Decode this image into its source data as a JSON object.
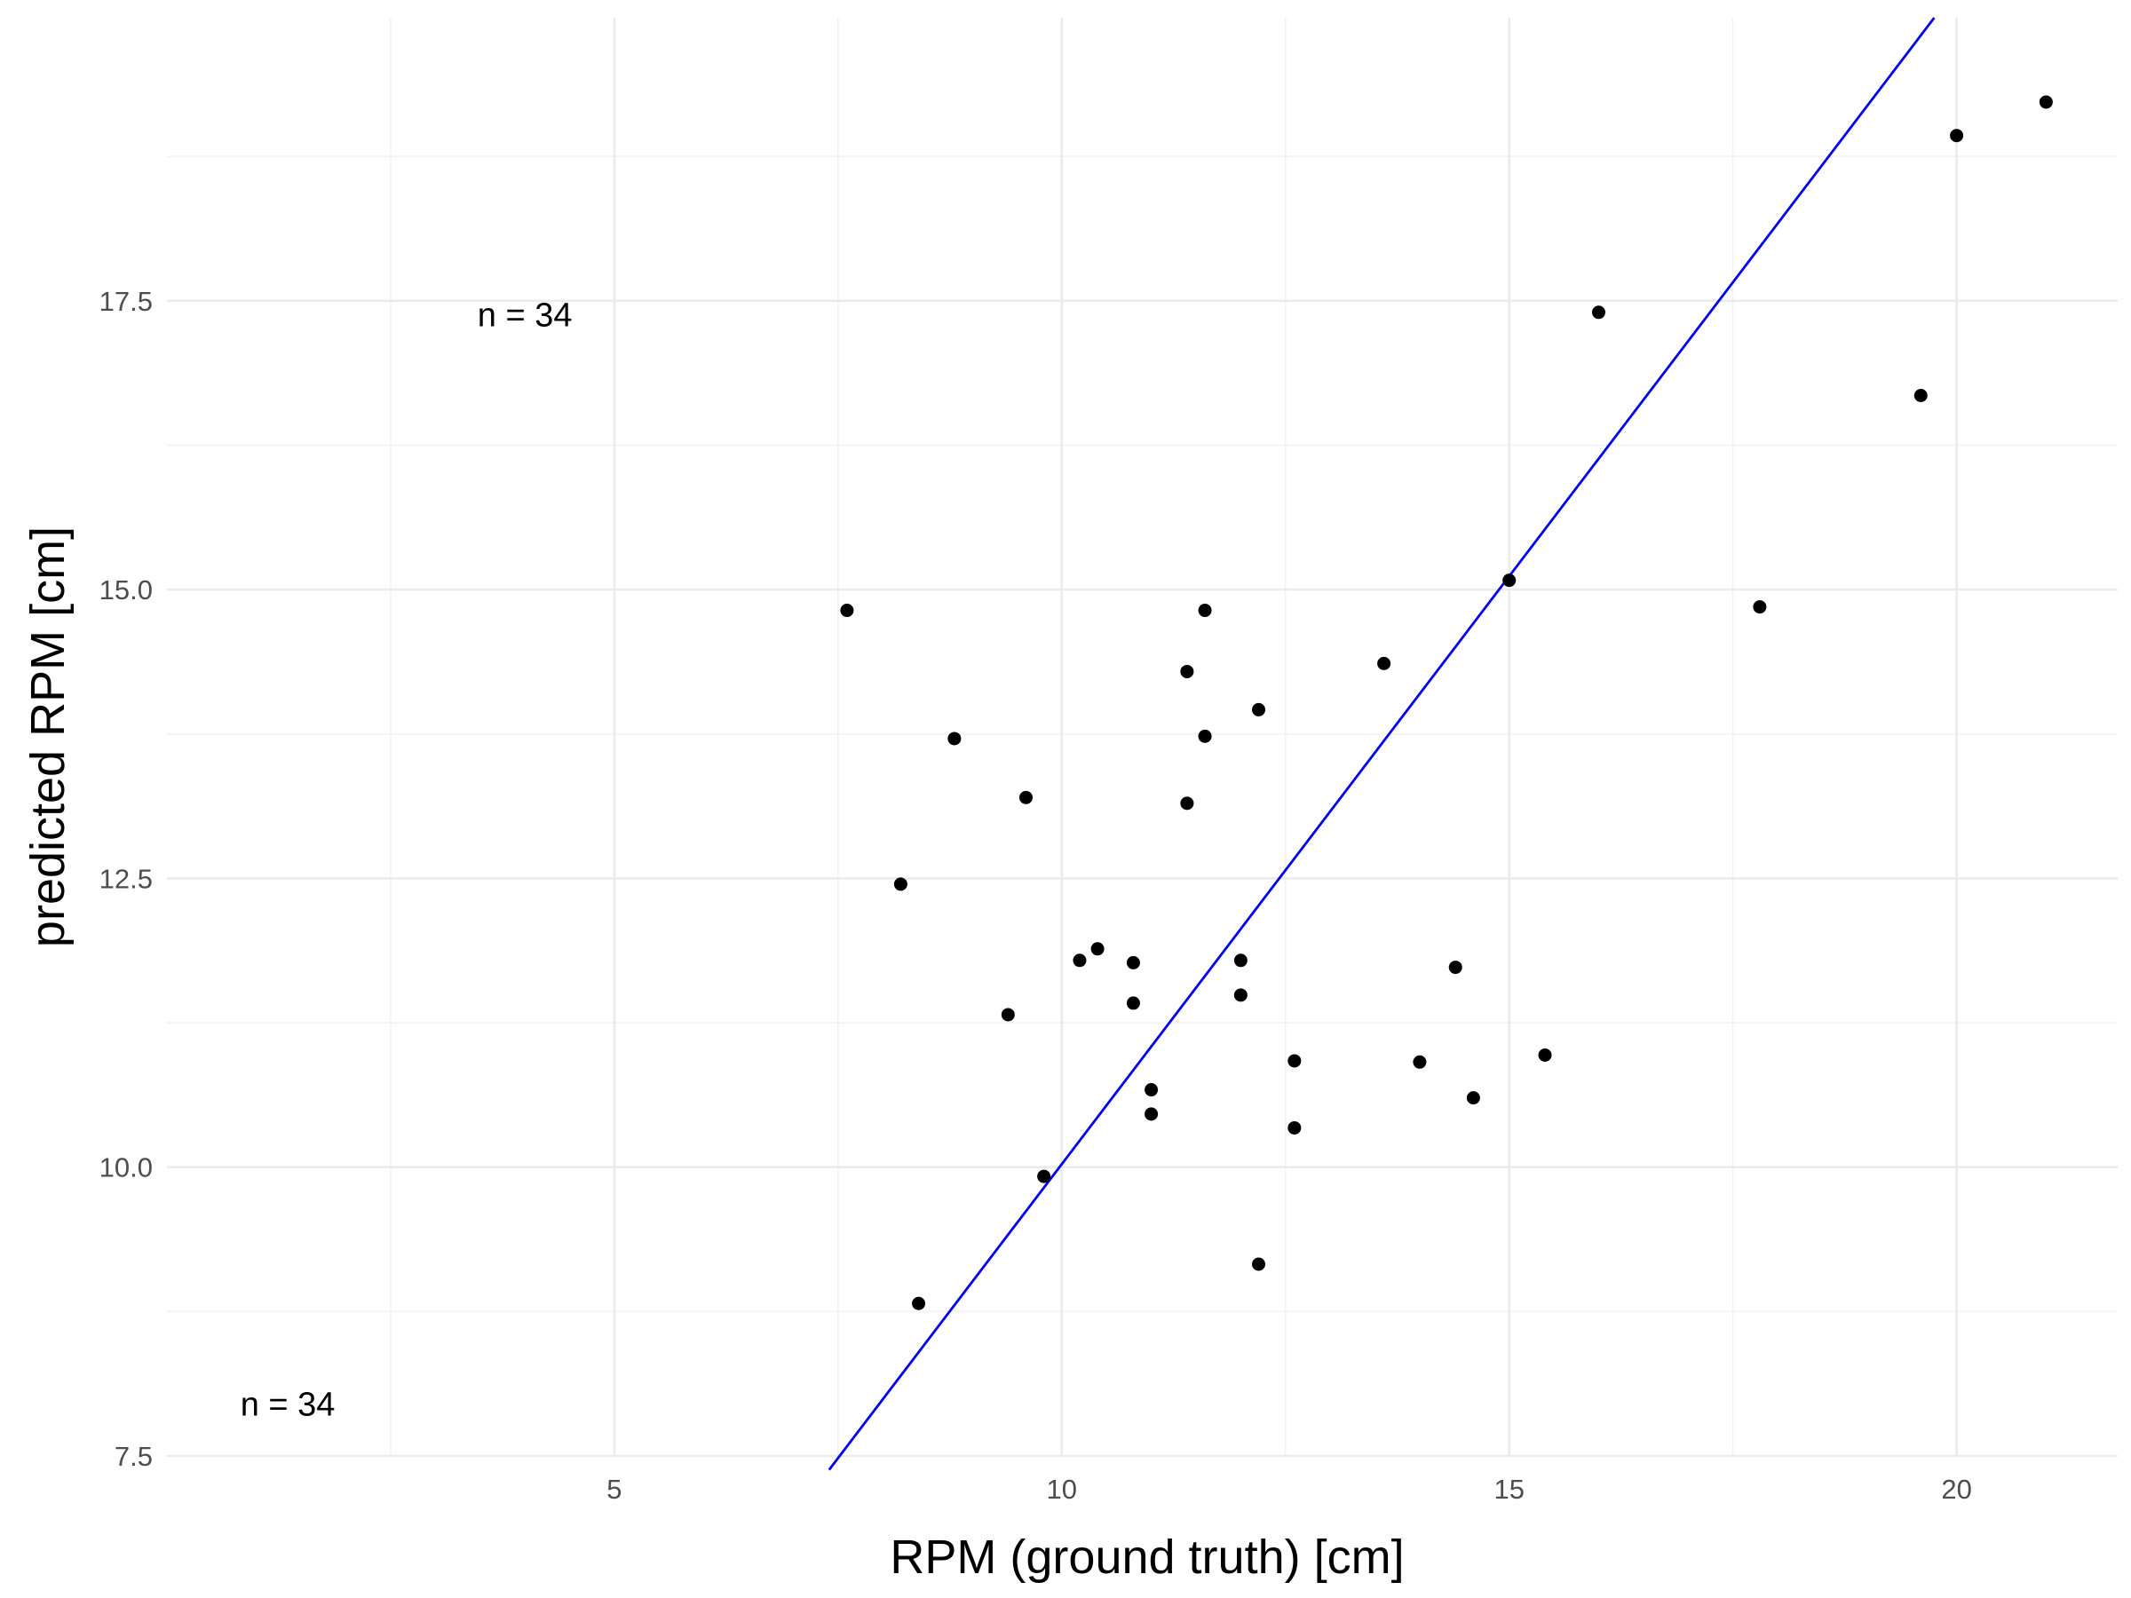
{
  "chart_data": {
    "type": "scatter",
    "title": "",
    "xlabel": "RPM (ground truth) [cm]",
    "ylabel": "predicted RPM [cm]",
    "xlim": [
      0.0,
      21.8
    ],
    "ylim": [
      7.5,
      19.95
    ],
    "x_ticks": [
      5,
      10,
      15,
      20
    ],
    "x_tick_labels": [
      "5",
      "10",
      "15",
      "20"
    ],
    "x_minor_ticks": [
      2.5,
      7.5,
      12.5,
      17.5
    ],
    "y_ticks": [
      7.5,
      10.0,
      12.5,
      15.0,
      17.5
    ],
    "y_tick_labels": [
      "7.5",
      "10.0",
      "12.5",
      "15.0",
      "17.5"
    ],
    "y_minor_ticks": [
      8.75,
      11.25,
      13.75,
      16.25,
      18.75
    ],
    "grid": true,
    "series": [
      {
        "kind": "points",
        "color": "#000000",
        "points": [
          {
            "x": 7.6,
            "y": 14.82
          },
          {
            "x": 8.2,
            "y": 12.45
          },
          {
            "x": 8.4,
            "y": 8.82
          },
          {
            "x": 8.8,
            "y": 13.71
          },
          {
            "x": 9.4,
            "y": 11.32
          },
          {
            "x": 9.6,
            "y": 13.2
          },
          {
            "x": 9.8,
            "y": 9.92
          },
          {
            "x": 10.2,
            "y": 11.79
          },
          {
            "x": 10.4,
            "y": 11.89
          },
          {
            "x": 10.8,
            "y": 11.77
          },
          {
            "x": 10.8,
            "y": 11.42
          },
          {
            "x": 11.0,
            "y": 10.67
          },
          {
            "x": 11.0,
            "y": 10.46
          },
          {
            "x": 11.4,
            "y": 14.29
          },
          {
            "x": 11.4,
            "y": 13.15
          },
          {
            "x": 11.6,
            "y": 14.82
          },
          {
            "x": 11.6,
            "y": 13.73
          },
          {
            "x": 12.0,
            "y": 11.79
          },
          {
            "x": 12.0,
            "y": 11.49
          },
          {
            "x": 12.2,
            "y": 13.96
          },
          {
            "x": 12.2,
            "y": 9.16
          },
          {
            "x": 12.6,
            "y": 10.92
          },
          {
            "x": 12.6,
            "y": 10.34
          },
          {
            "x": 13.6,
            "y": 14.36
          },
          {
            "x": 14.0,
            "y": 10.91
          },
          {
            "x": 14.4,
            "y": 11.73
          },
          {
            "x": 14.6,
            "y": 10.6
          },
          {
            "x": 15.0,
            "y": 15.08
          },
          {
            "x": 15.4,
            "y": 10.97
          },
          {
            "x": 16.0,
            "y": 17.4
          },
          {
            "x": 17.8,
            "y": 14.85
          },
          {
            "x": 19.6,
            "y": 16.68
          },
          {
            "x": 20.0,
            "y": 18.93
          },
          {
            "x": 21.0,
            "y": 19.22
          }
        ]
      },
      {
        "kind": "line",
        "color": "#0000ff",
        "x": [
          7.4,
          19.75
        ],
        "y": [
          7.38,
          19.95
        ]
      }
    ],
    "annotations": [
      {
        "text": "n =  34",
        "x": 4.0,
        "y": 17.28
      },
      {
        "text": "n =  34",
        "x": 1.35,
        "y": 7.85
      }
    ]
  }
}
